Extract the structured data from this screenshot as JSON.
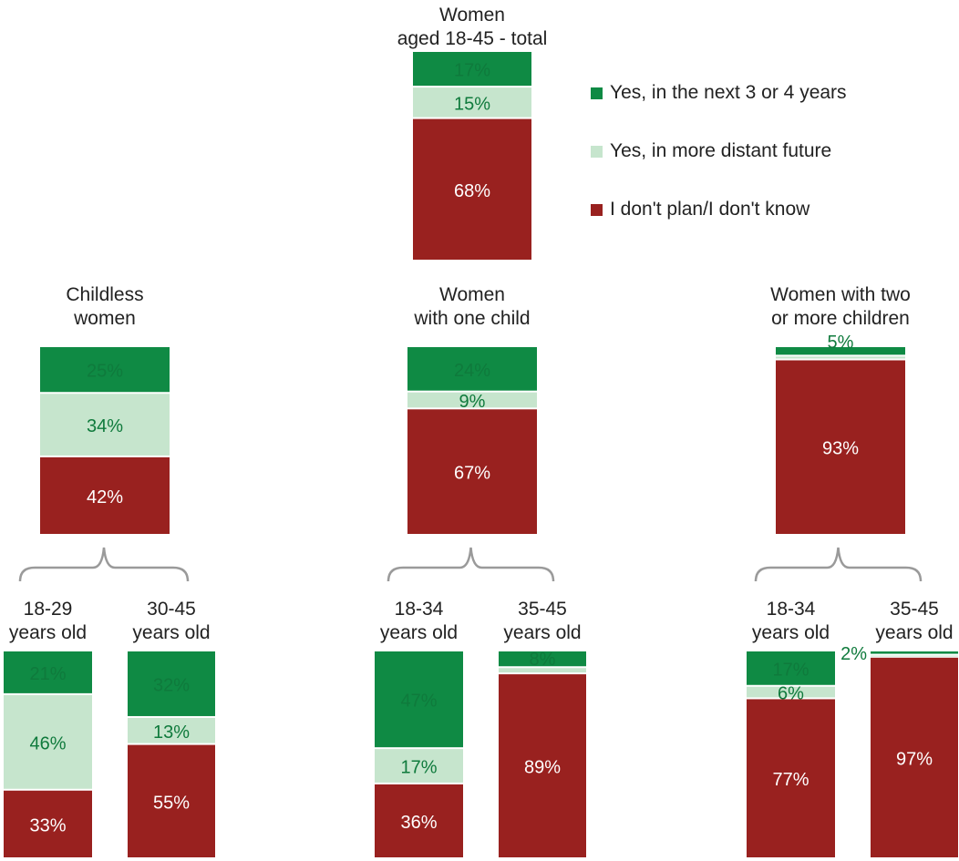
{
  "colors": {
    "soon": "#0f8a44",
    "later": "#c6e5cd",
    "none": "#99211f",
    "bracket": "#9a9a9a",
    "text_dark": "#222222",
    "text_green": "#0f7a3c",
    "text_light": "#ffffff"
  },
  "legend": [
    {
      "key": "soon",
      "label": "Yes, in the next 3 or 4 years"
    },
    {
      "key": "later",
      "label": "Yes, in more distant future"
    },
    {
      "key": "none",
      "label": "I don't plan/I don't know"
    }
  ],
  "chart_data": {
    "type": "bar",
    "stacked": true,
    "value_unit": "%",
    "series_keys": [
      "soon",
      "later",
      "none"
    ],
    "groups": [
      {
        "id": "total",
        "title": [
          "Women",
          "aged 18-45 - total"
        ],
        "values": [
          17,
          15,
          68
        ],
        "labels": [
          "17%",
          "15%",
          "68%"
        ]
      },
      {
        "id": "childless",
        "title": [
          "Childless",
          "women"
        ],
        "values": [
          25,
          34,
          42
        ],
        "labels": [
          "25%",
          "34%",
          "42%"
        ]
      },
      {
        "id": "one-child",
        "title": [
          "Women",
          "with one child"
        ],
        "values": [
          24,
          9,
          67
        ],
        "labels": [
          "24%",
          "9%",
          "67%"
        ]
      },
      {
        "id": "two-plus",
        "title": [
          "Women with two",
          "or more children"
        ],
        "values": [
          5,
          2,
          93
        ],
        "labels": [
          "5%",
          "2%",
          "93%"
        ]
      },
      {
        "id": "childless-18-29",
        "title": [
          "18-29",
          "years old"
        ],
        "values": [
          21,
          46,
          33
        ],
        "labels": [
          "21%",
          "46%",
          "33%"
        ]
      },
      {
        "id": "childless-30-45",
        "title": [
          "30-45",
          "years old"
        ],
        "values": [
          32,
          13,
          55
        ],
        "labels": [
          "32%",
          "13%",
          "55%"
        ]
      },
      {
        "id": "one-child-18-34",
        "title": [
          "18-34",
          "years old"
        ],
        "values": [
          47,
          17,
          36
        ],
        "labels": [
          "47%",
          "17%",
          "36%"
        ]
      },
      {
        "id": "one-child-35-45",
        "title": [
          "35-45",
          "years old"
        ],
        "values": [
          8,
          3,
          89
        ],
        "labels": [
          "8%",
          "3%",
          "89%"
        ]
      },
      {
        "id": "two-plus-18-34",
        "title": [
          "18-34",
          "years old"
        ],
        "values": [
          17,
          6,
          77
        ],
        "labels": [
          "17%",
          "6%",
          "77%"
        ]
      },
      {
        "id": "two-plus-35-45",
        "title": [
          "35-45",
          "years old"
        ],
        "values": [
          2,
          1,
          97
        ],
        "labels": [
          "2%",
          "1%",
          "97%"
        ]
      }
    ]
  }
}
